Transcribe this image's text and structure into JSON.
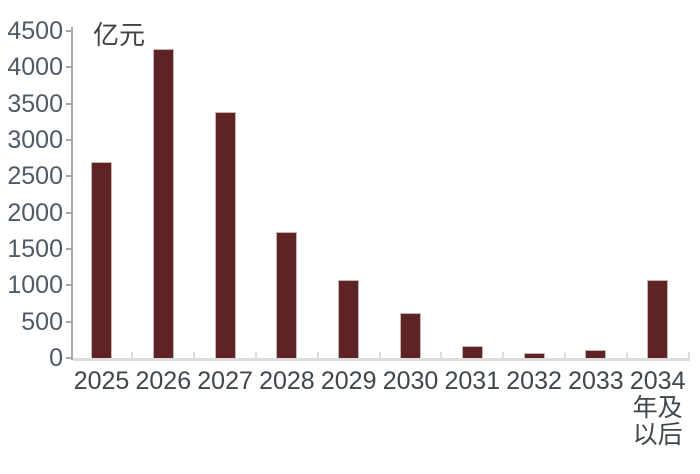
{
  "chart_data": {
    "type": "bar",
    "title": "",
    "unit_label": "亿元",
    "xlabel": "",
    "ylabel": "亿元",
    "categories": [
      "2025",
      "2026",
      "2027",
      "2028",
      "2029",
      "2030",
      "2031",
      "2032",
      "2033",
      "2034\n年及\n以后"
    ],
    "values": [
      2700,
      4250,
      3390,
      1740,
      1070,
      620,
      170,
      75,
      105,
      1070
    ],
    "ylim": [
      0,
      4500
    ],
    "ytick_step": 500,
    "yticks": [
      0,
      500,
      1000,
      1500,
      2000,
      2500,
      3000,
      3500,
      4000,
      4500
    ],
    "grid": false,
    "legend": "none",
    "colors": {
      "bar": "#5E2425",
      "bar_border": "#C9B4B4",
      "y_axis": "#A8A8A8",
      "x_axis": "#DCDCDC",
      "y_label": "#4E5A66",
      "x_label": "#3F464C",
      "unit_label": "#3F4345"
    }
  }
}
